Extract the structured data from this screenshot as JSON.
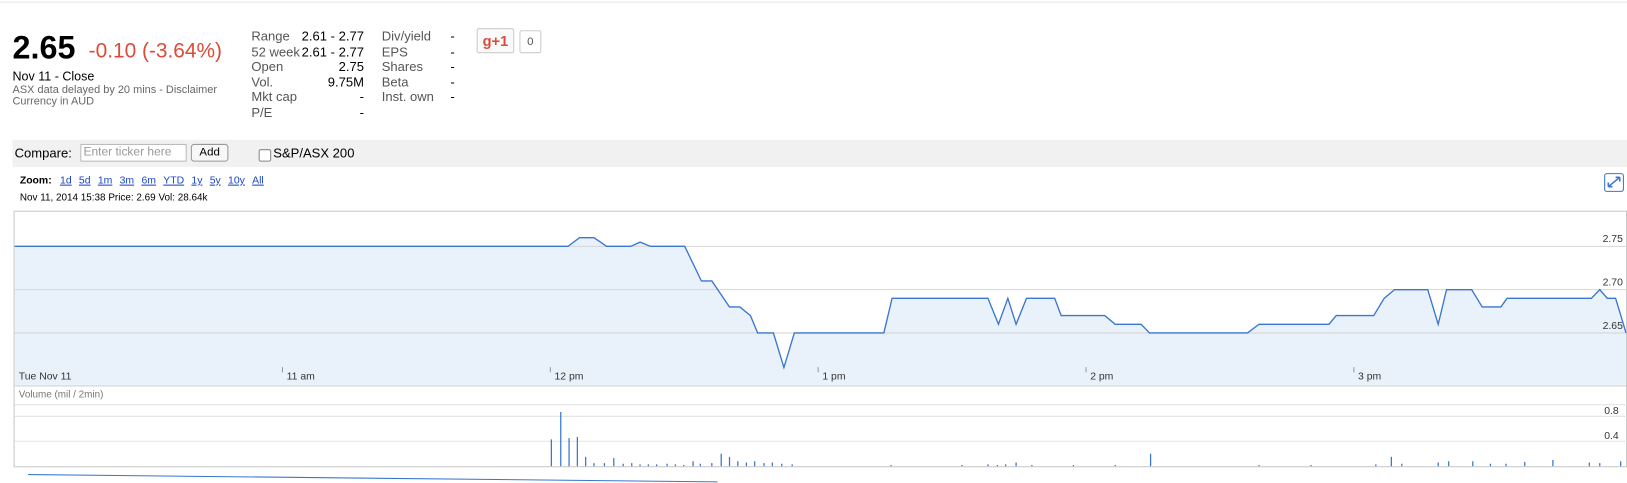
{
  "quote": {
    "price": "2.65",
    "change": "-0.10 (-3.64%)",
    "date": "Nov 11 - Close",
    "delay": "ASX data delayed by 20 mins - ",
    "disclaimer": "Disclaimer",
    "currency": "Currency in AUD"
  },
  "stats": {
    "left": [
      [
        "Range",
        "2.61 - 2.77"
      ],
      [
        "52 week",
        "2.61 - 2.77"
      ],
      [
        "Open",
        "2.75"
      ],
      [
        "Vol.",
        "9.75M"
      ],
      [
        "Mkt cap",
        "-"
      ],
      [
        "P/E",
        "-"
      ]
    ],
    "right": [
      [
        "Div/yield",
        "-"
      ],
      [
        "EPS",
        "-"
      ],
      [
        "Shares",
        "-"
      ],
      [
        "Beta",
        "-"
      ],
      [
        "Inst. own",
        "-"
      ]
    ]
  },
  "social": {
    "button": "g+1",
    "count": "0"
  },
  "compare": {
    "label": "Compare:",
    "placeholder": "Enter ticker here",
    "button": "Add",
    "index": "S&P/ASX 200"
  },
  "zoom": {
    "label": "Zoom:",
    "links": [
      "1d",
      "5d",
      "1m",
      "3m",
      "6m",
      "YTD",
      "1y",
      "5y",
      "10y",
      "All"
    ]
  },
  "info": "Nov 11, 2014 15:38 Price: 2.69 Vol: 28.64k",
  "chart_data": [
    {
      "type": "line",
      "color": "#3a76d0",
      "fill": "#e9f2fb",
      "grid": true,
      "x": [
        10.0,
        12.066,
        12.109,
        12.163,
        12.21,
        12.3,
        12.335,
        12.374,
        12.502,
        12.564,
        12.603,
        12.669,
        12.708,
        12.747,
        12.774,
        12.833,
        12.872,
        12.911,
        13.245,
        13.276,
        13.634,
        13.673,
        13.708,
        13.739,
        13.778,
        13.883,
        13.907,
        14.07,
        14.109,
        14.206,
        14.237,
        14.603,
        14.646,
        14.907,
        14.934,
        15.074,
        15.113,
        15.152,
        15.276,
        15.315,
        15.346,
        15.44,
        15.479,
        15.549,
        15.572,
        15.887,
        15.918,
        15.946,
        15.977,
        16.016
      ],
      "values": [
        2.75,
        2.75,
        2.76,
        2.76,
        2.75,
        2.75,
        2.755,
        2.75,
        2.75,
        2.71,
        2.71,
        2.68,
        2.68,
        2.67,
        2.65,
        2.65,
        2.61,
        2.65,
        2.65,
        2.69,
        2.69,
        2.66,
        2.69,
        2.66,
        2.69,
        2.69,
        2.67,
        2.67,
        2.66,
        2.66,
        2.65,
        2.65,
        2.66,
        2.66,
        2.67,
        2.67,
        2.69,
        2.7,
        2.7,
        2.66,
        2.7,
        2.7,
        2.68,
        2.68,
        2.69,
        2.69,
        2.7,
        2.69,
        2.69,
        2.65
      ],
      "xlim": [
        10,
        16.02
      ],
      "ylim": [
        2.59,
        2.79
      ],
      "xticks": [
        {
          "value": 10,
          "label": "Tue Nov 11"
        },
        {
          "value": 11,
          "label": "11 am"
        },
        {
          "value": 12,
          "label": "12 pm"
        },
        {
          "value": 13,
          "label": "1 pm"
        },
        {
          "value": 14,
          "label": "2 pm"
        },
        {
          "value": 15,
          "label": "3 pm"
        }
      ],
      "yticks": [
        2.65,
        {
          "value": 2.7,
          "label": "2.70"
        },
        2.75
      ]
    },
    {
      "type": "bar",
      "title": "Volume (mil / 2min)",
      "color": "#3a76d0",
      "grid": true,
      "x": [
        12.004,
        12.039,
        12.07,
        12.101,
        12.132,
        12.163,
        12.202,
        12.237,
        12.272,
        12.304,
        12.335,
        12.366,
        12.397,
        12.436,
        12.467,
        12.498,
        12.533,
        12.56,
        12.603,
        12.638,
        12.669,
        12.7,
        12.732,
        12.763,
        12.798,
        12.829,
        12.864,
        12.903,
        13.272,
        13.537,
        13.634,
        13.669,
        13.7,
        13.739,
        13.798,
        13.953,
        14.109,
        14.241,
        14.646,
        14.84,
        15.082,
        15.14,
        15.179,
        15.315,
        15.354,
        15.444,
        15.51,
        15.568,
        15.638,
        15.743,
        15.879,
        15.918,
        15.996
      ],
      "values": [
        0.43,
        0.87,
        0.45,
        0.47,
        0.15,
        0.05,
        0.05,
        0.13,
        0.04,
        0.05,
        0.03,
        0.03,
        0.03,
        0.04,
        0.03,
        0.02,
        0.08,
        0.04,
        0.05,
        0.2,
        0.15,
        0.08,
        0.06,
        0.08,
        0.05,
        0.06,
        0.04,
        0.03,
        0.02,
        0.02,
        0.03,
        0.02,
        0.03,
        0.06,
        0.02,
        0.02,
        0.02,
        0.2,
        0.02,
        0.02,
        0.03,
        0.15,
        0.04,
        0.06,
        0.08,
        0.08,
        0.04,
        0.04,
        0.07,
        0.1,
        0.06,
        0.05,
        0.08
      ],
      "xlim": [
        10,
        16.02
      ],
      "ylim": [
        0,
        0.97
      ],
      "yticks": [
        0.4,
        0.8
      ]
    }
  ]
}
